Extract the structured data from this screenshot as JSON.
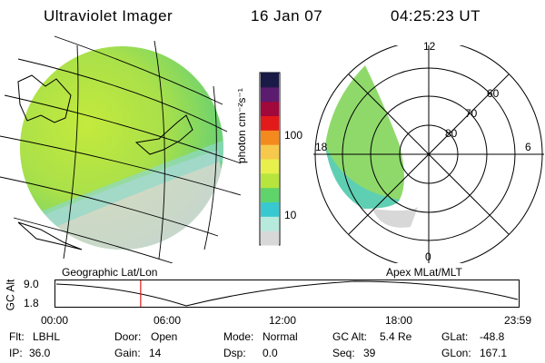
{
  "header": {
    "instrument": "Ultraviolet Imager",
    "date": "16 Jan 07",
    "time": "04:25:23 UT"
  },
  "colorbar": {
    "unit_label": "photon cm⁻²s⁻¹",
    "ticks": [
      "100",
      "10"
    ],
    "colors": [
      "#d8d8d8",
      "#b6eadc",
      "#38c9d0",
      "#5fd46a",
      "#b7e53d",
      "#e8f04c",
      "#f6c94c",
      "#f48a1e",
      "#e21a1a",
      "#a1083b",
      "#5b1b6f",
      "#1a1a46"
    ]
  },
  "left_panel": {
    "caption": "Geographic Lat/Lon"
  },
  "right_panel": {
    "caption": "Apex MLat/MLT",
    "mlt_labels": {
      "top": "12",
      "left": "18",
      "right": "6",
      "bottom": "0"
    },
    "lat_labels": [
      "60",
      "70",
      "80"
    ]
  },
  "altitude_plot": {
    "ylabel": "GC Alt",
    "yticks": [
      "9.0",
      "1.8"
    ],
    "xticks": [
      "00:00",
      "06:00",
      "12:00",
      "18:00",
      "23:59"
    ],
    "marker_time": "04:25",
    "marker_color": "#e41a1a"
  },
  "status": {
    "row1": [
      {
        "label": "Flt:",
        "value": "LBHL"
      },
      {
        "label": "Door:",
        "value": "Open"
      },
      {
        "label": "Mode:",
        "value": "Normal"
      },
      {
        "label": "GC Alt:",
        "value": "5.4 Re"
      },
      {
        "label": "GLat:",
        "value": "-48.8"
      }
    ],
    "row2": [
      {
        "label": "IP:",
        "value": "36.0"
      },
      {
        "label": "Gain:",
        "value": "14"
      },
      {
        "label": "Dsp:",
        "value": "0.0"
      },
      {
        "label": "Seq:",
        "value": "39"
      },
      {
        "label": "GLon:",
        "value": "167.1"
      }
    ]
  }
}
